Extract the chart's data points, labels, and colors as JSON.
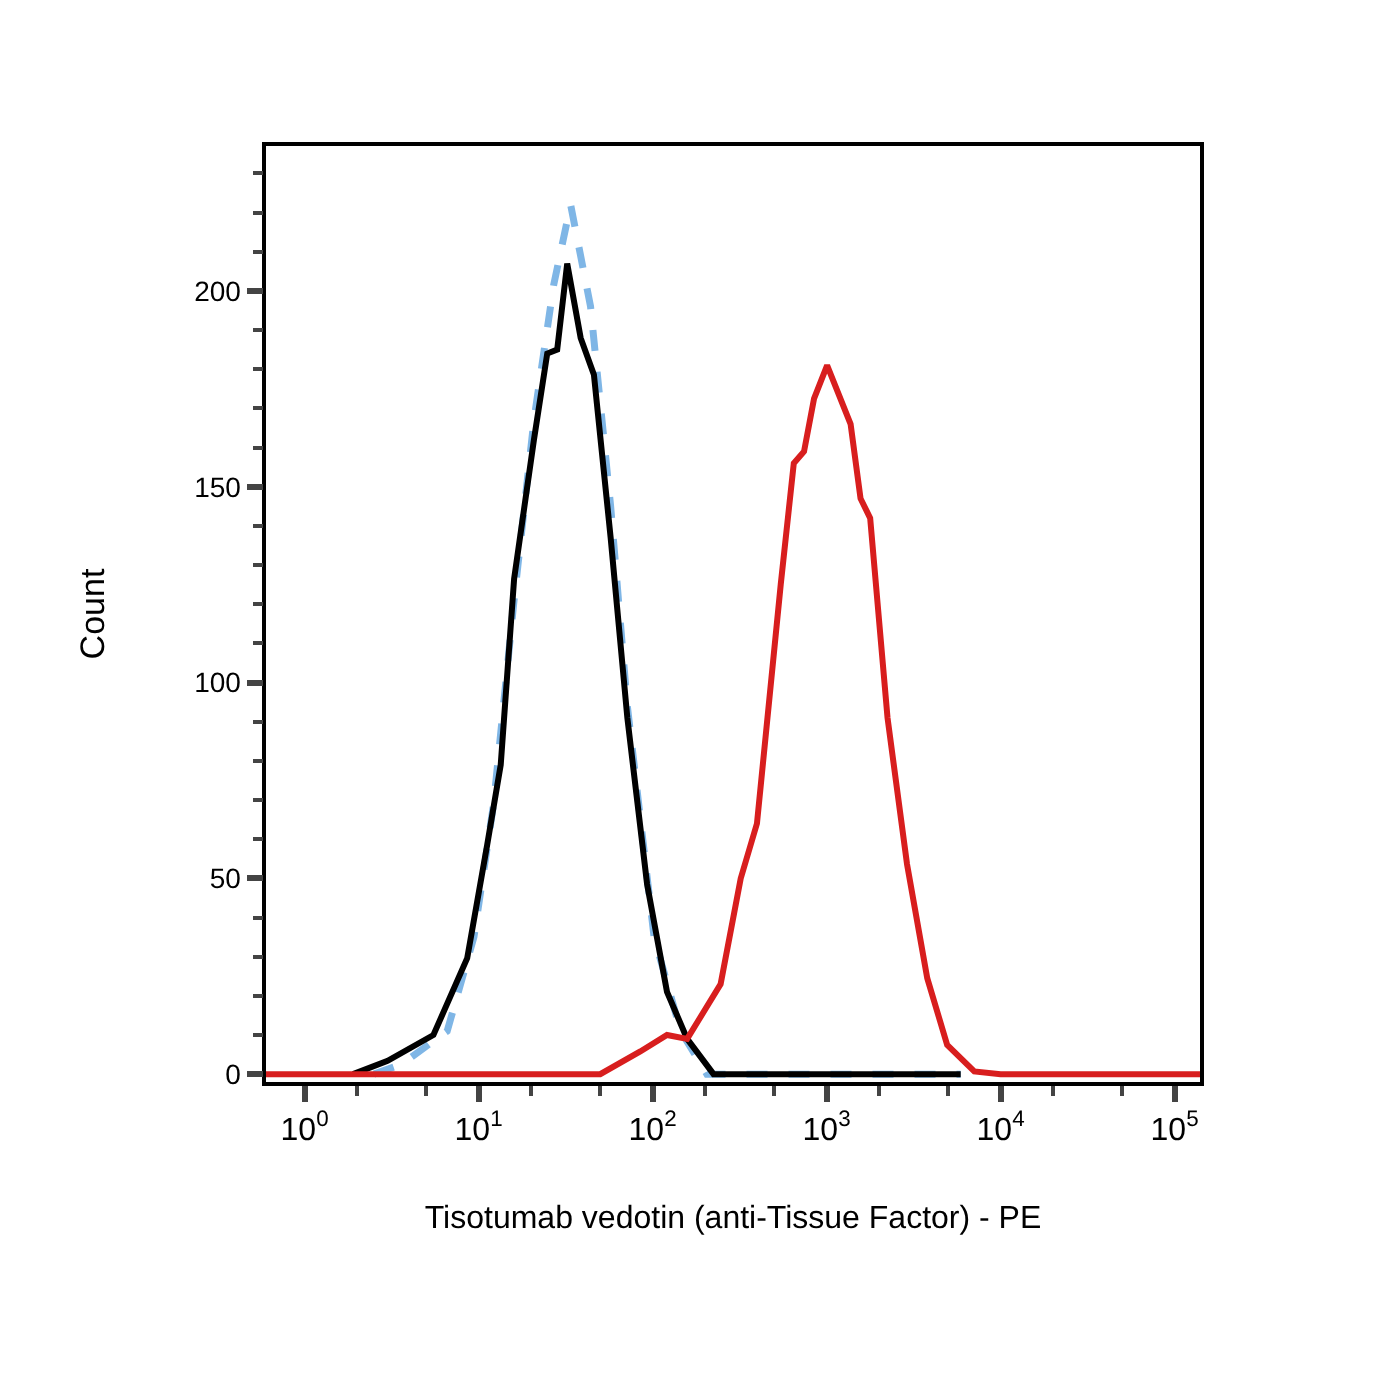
{
  "chart_data": {
    "type": "line",
    "xlabel": "Tisotumab vedotin (anti-Tissue Factor) - PE",
    "ylabel": "Count",
    "log": "x",
    "xlim": [
      0.6,
      140000
    ],
    "ylim": [
      -2,
      237
    ],
    "xticks": [
      {
        "value": 1,
        "label": "10$^{0}$"
      },
      {
        "value": 10,
        "label": "10$^{1}$"
      },
      {
        "value": 100,
        "label": "10$^{2}$"
      },
      {
        "value": 1000,
        "label": "10$^{3}$"
      },
      {
        "value": 10000,
        "label": "10$^{4}$"
      },
      {
        "value": 100000,
        "label": "10$^{5}$"
      }
    ],
    "yticks": [
      0,
      50,
      100,
      150,
      200
    ],
    "legend": false,
    "series": [
      {
        "color": "#7fb6e6",
        "line_style": "dashed",
        "x": [
          2.5,
          3.6,
          6.6,
          9.4,
          12.2,
          15.9,
          20.8,
          27,
          33.8,
          44,
          57.4,
          71.6,
          102,
          145,
          205,
          5900
        ],
        "values": [
          0,
          2.5,
          11,
          35,
          69,
          120,
          167,
          201.5,
          222,
          196,
          145,
          94,
          35,
          11,
          0,
          0
        ]
      },
      {
        "color": "#000000",
        "line_style": "solid",
        "x": [
          1.9,
          3.0,
          5.5,
          8.6,
          11.2,
          13.4,
          16,
          20.8,
          24.8,
          28.3,
          32.3,
          38.6,
          46,
          57.4,
          71.6,
          93,
          121,
          158,
          224,
          5900
        ],
        "values": [
          0,
          3.4,
          10,
          29.6,
          58.5,
          79,
          126.5,
          162,
          184,
          185,
          207,
          188,
          178.6,
          137,
          91,
          48.5,
          21,
          9,
          0,
          0
        ]
      },
      {
        "color": "#d81e1e",
        "line_style": "solid",
        "x": [
          0.6,
          50,
          85,
          121,
          158,
          246,
          321,
          398,
          545,
          648,
          742,
          847,
          1007,
          1374,
          1567,
          1780,
          2240,
          2900,
          3790,
          4930,
          7060,
          10000,
          140000
        ],
        "values": [
          0,
          0,
          5.8,
          10,
          9,
          23,
          50,
          64,
          125,
          156,
          159,
          172.5,
          181,
          166,
          147,
          142,
          91,
          53.6,
          24.5,
          7.5,
          0.7,
          0,
          0
        ]
      }
    ]
  }
}
